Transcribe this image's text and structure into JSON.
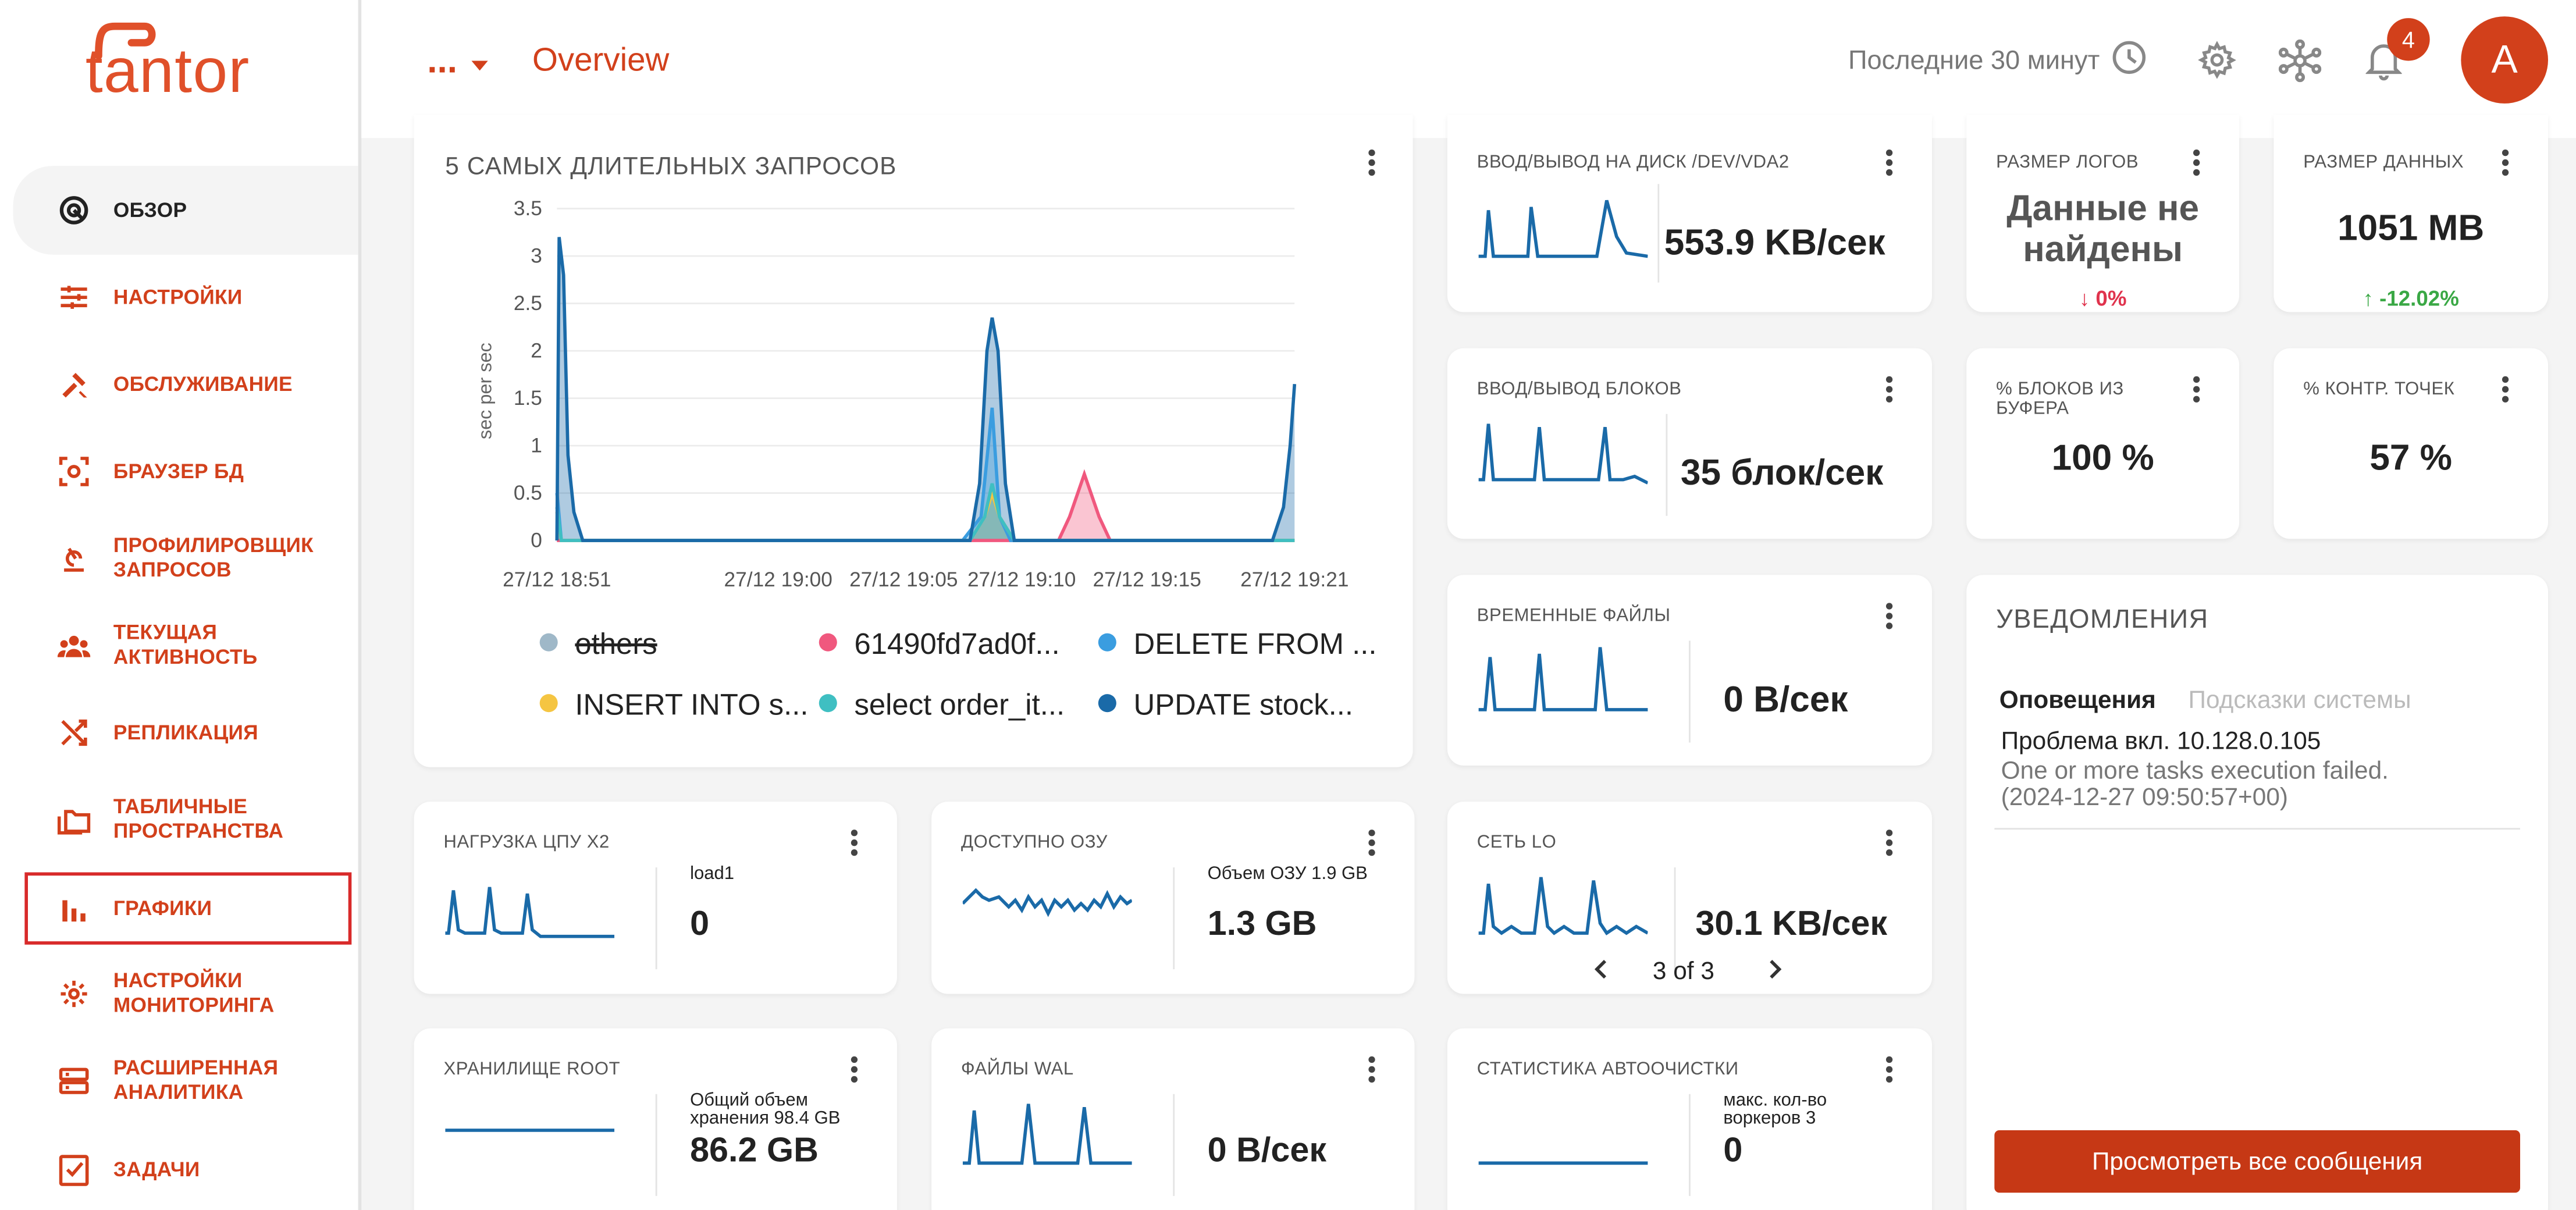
{
  "app": {
    "name": "tantor"
  },
  "header": {
    "db_selector": "...",
    "page_title": "Overview",
    "time_range": "Последние 30 минут",
    "notifications_count": "4",
    "avatar_letter": "A"
  },
  "sidebar": {
    "items": [
      {
        "label": "ОБЗОР",
        "icon": "overview-icon"
      },
      {
        "label": "НАСТРОЙКИ",
        "icon": "sliders-icon"
      },
      {
        "label": "ОБСЛУЖИВАНИЕ",
        "icon": "tools-icon"
      },
      {
        "label": "БРАУЗЕР БД",
        "icon": "db-browser-icon"
      },
      {
        "label": "ПРОФИЛИРОВЩИК ЗАПРОСОВ",
        "icon": "profiler-icon"
      },
      {
        "label": "ТЕКУЩАЯ АКТИВНОСТЬ",
        "icon": "activity-icon"
      },
      {
        "label": "РЕПЛИКАЦИЯ",
        "icon": "shuffle-icon"
      },
      {
        "label": "ТАБЛИЧНЫЕ ПРОСТРАНСТВА",
        "icon": "folders-icon"
      },
      {
        "label": "ГРАФИКИ",
        "icon": "bar-chart-icon"
      },
      {
        "label": "НАСТРОЙКИ МОНИТОРИНГА",
        "icon": "gear-icon"
      },
      {
        "label": "РАСШИРЕННАЯ АНАЛИТИКА",
        "icon": "server-icon"
      },
      {
        "label": "ЗАДАЧИ",
        "icon": "task-icon"
      }
    ]
  },
  "top_queries": {
    "title": "5 САМЫХ ДЛИТЕЛЬНЫХ ЗАПРОСОВ"
  },
  "chart_data": {
    "type": "area",
    "title": "5 САМЫХ ДЛИТЕЛЬНЫХ ЗАПРОСОВ",
    "ylabel": "sec per sec",
    "ylim": [
      0,
      3.5
    ],
    "yticks": [
      "0",
      "0.5",
      "1",
      "1.5",
      "2",
      "2.5",
      "3",
      "3.5"
    ],
    "xticks": [
      "27/12 18:51",
      "27/12 19:00",
      "27/12 19:05",
      "27/12 19:10",
      "27/12 19:15",
      "27/12 19:21"
    ],
    "legend_position": "bottom",
    "series": [
      {
        "name": "others",
        "color": "#9fb8c8",
        "hidden": true,
        "points": [
          [
            0,
            0.8
          ],
          [
            0.6,
            0
          ],
          [
            100,
            0
          ]
        ]
      },
      {
        "name": "61490fd7ad0f...",
        "color": "#f0587e",
        "points": [
          [
            0,
            0
          ],
          [
            66,
            0
          ],
          [
            68,
            0
          ],
          [
            69.5,
            0.25
          ],
          [
            71.5,
            0.7
          ],
          [
            73.5,
            0.25
          ],
          [
            75,
            0
          ],
          [
            100,
            0
          ]
        ]
      },
      {
        "name": "DELETE FROM ...",
        "color": "#3a9de0",
        "points": [
          [
            0,
            0.5
          ],
          [
            0.6,
            0
          ],
          [
            55,
            0
          ],
          [
            57.5,
            0.25
          ],
          [
            59,
            1.4
          ],
          [
            60,
            0.25
          ],
          [
            61.5,
            0
          ],
          [
            100,
            0
          ]
        ]
      },
      {
        "name": "INSERT INTO s...",
        "color": "#f5c542",
        "points": [
          [
            0,
            0.3
          ],
          [
            0.6,
            0
          ],
          [
            56,
            0
          ],
          [
            58,
            0.25
          ],
          [
            59,
            0.5
          ],
          [
            60,
            0.25
          ],
          [
            62,
            0
          ],
          [
            100,
            0
          ]
        ]
      },
      {
        "name": "select order_it...",
        "color": "#3fbfc2",
        "points": [
          [
            0,
            0.35
          ],
          [
            0.6,
            0
          ],
          [
            56,
            0
          ],
          [
            58,
            0.25
          ],
          [
            59,
            0.6
          ],
          [
            60,
            0.25
          ],
          [
            62,
            0
          ],
          [
            100,
            0
          ]
        ]
      },
      {
        "name": "UPDATE stock...",
        "color": "#1a6aa8",
        "points": [
          [
            0,
            0
          ],
          [
            0.3,
            3.2
          ],
          [
            0.9,
            2.8
          ],
          [
            1.5,
            0.9
          ],
          [
            2.3,
            0.3
          ],
          [
            3.5,
            0
          ],
          [
            56,
            0
          ],
          [
            57.3,
            0.6
          ],
          [
            58.3,
            2.0
          ],
          [
            59,
            2.35
          ],
          [
            59.8,
            2.0
          ],
          [
            60.8,
            0.6
          ],
          [
            62,
            0
          ],
          [
            97,
            0
          ],
          [
            98.5,
            0.35
          ],
          [
            99.4,
            1.0
          ],
          [
            100,
            1.65
          ]
        ]
      }
    ]
  },
  "metrics": {
    "disk_io": {
      "title": "ВВОД/ВЫВОД НА ДИСК /DEV/VDA2",
      "value": "553.9 KB/сек"
    },
    "block_io": {
      "title": "ВВОД/ВЫВОД БЛОКОВ",
      "value": "35 блок/сек"
    },
    "temp_files": {
      "title": "ВРЕМЕННЫЕ ФАЙЛЫ",
      "value": "0 B/сек"
    },
    "log_size": {
      "title": "РАЗМЕР ЛОГОВ",
      "value": "Данные не найдены",
      "delta": "0%",
      "delta_color": "#e0334d"
    },
    "data_size": {
      "title": "РАЗМЕР ДАННЫХ",
      "value": "1051 MB",
      "delta": "-12.02%",
      "delta_color": "#3aa845"
    },
    "buffer_blocks": {
      "title": "% БЛОКОВ ИЗ БУФЕРА",
      "value": "100 %"
    },
    "checkpoints": {
      "title": "% КОНТР. ТОЧЕК",
      "value": "57 %"
    },
    "cpu": {
      "title": "НАГРУЗКА ЦПУ X2",
      "sub": "load1",
      "value": "0"
    },
    "ram": {
      "title": "ДОСТУПНО ОЗУ",
      "sub": "Объем ОЗУ 1.9 GB",
      "value": "1.3 GB"
    },
    "net": {
      "title": "СЕТЬ LO",
      "value": "30.1 KB/сек",
      "pager": "3 of 3"
    },
    "storage": {
      "title": "ХРАНИЛИЩЕ ROOT",
      "sub": "Общий объем хранения 98.4 GB",
      "value": "86.2 GB"
    },
    "wal": {
      "title": "ФАЙЛЫ WAL",
      "value": "0 B/сек"
    },
    "autovacuum": {
      "title": "СТАТИСТИКА АВТООЧИСТКИ",
      "sub": "макс. кол-во воркеров 3",
      "value": "0"
    }
  },
  "notifications": {
    "title": "УВЕДОМЛЕНИЯ",
    "tab_alerts": "Оповещения",
    "tab_hints": "Подсказки системы",
    "item_title": "Проблема вкл. 10.128.0.105",
    "item_text": "One or more tasks execution failed.",
    "item_time": "(2024-12-27 09:50:57+00)",
    "view_all_button": "Просмотреть все сообщения"
  }
}
